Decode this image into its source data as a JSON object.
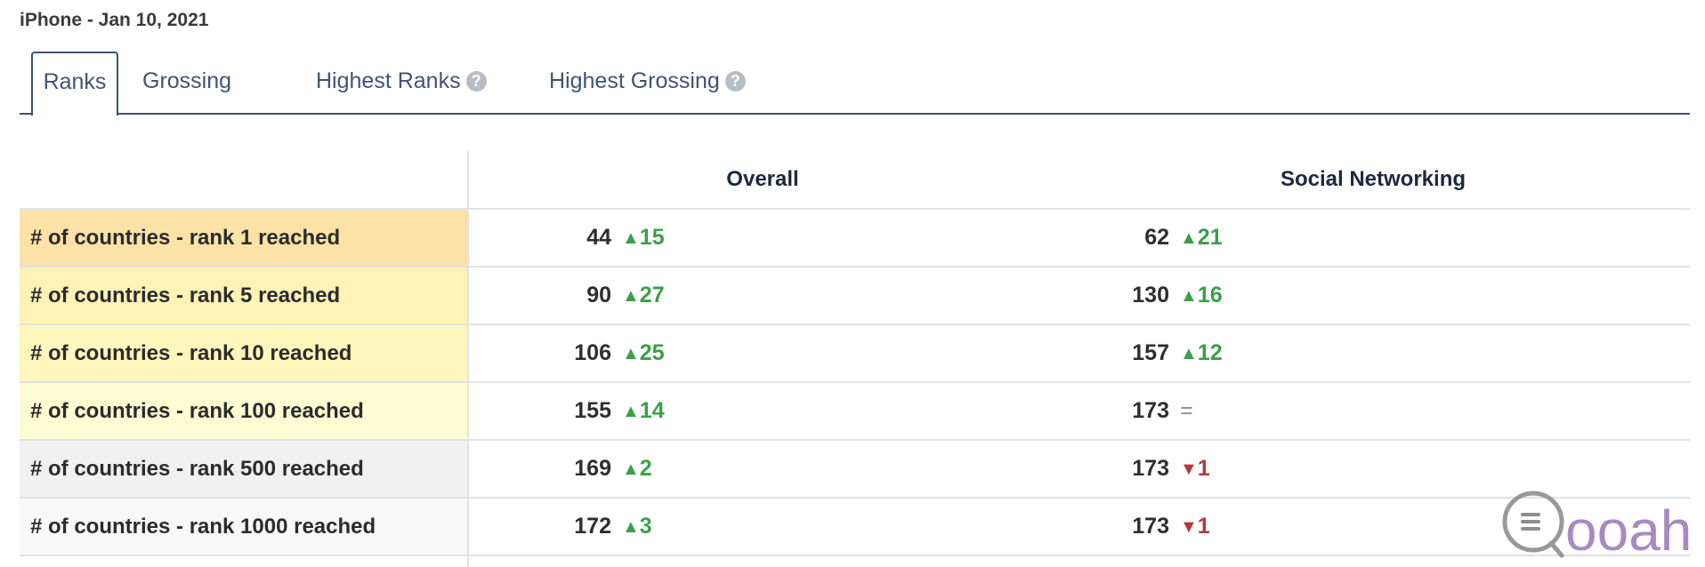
{
  "page_title": "iPhone - Jan 10, 2021",
  "tabs": [
    {
      "label": "Ranks",
      "active": true
    },
    {
      "label": "Grossing",
      "active": false
    },
    {
      "label": "Highest Ranks",
      "active": false,
      "help_icon": "question-circle-icon"
    },
    {
      "label": "Highest Grossing",
      "active": false,
      "help_icon": "question-circle-icon"
    }
  ],
  "help_glyph": "?",
  "table": {
    "columns": [
      "",
      "Overall",
      "Social Networking"
    ],
    "rows": [
      {
        "label": "# of countries - rank 1 reached",
        "bg": "#fde2a8",
        "overall": {
          "value": "44",
          "change": "15",
          "dir": "up"
        },
        "social": {
          "value": "62",
          "change": "21",
          "dir": "up"
        }
      },
      {
        "label": "# of countries - rank 5 reached",
        "bg": "#fef2b7",
        "overall": {
          "value": "90",
          "change": "27",
          "dir": "up"
        },
        "social": {
          "value": "130",
          "change": "16",
          "dir": "up"
        }
      },
      {
        "label": "# of countries - rank 10 reached",
        "bg": "#fef6bc",
        "overall": {
          "value": "106",
          "change": "25",
          "dir": "up"
        },
        "social": {
          "value": "157",
          "change": "12",
          "dir": "up"
        }
      },
      {
        "label": "# of countries - rank 100 reached",
        "bg": "#fdfcd2",
        "overall": {
          "value": "155",
          "change": "14",
          "dir": "up"
        },
        "social": {
          "value": "173",
          "change": "=",
          "dir": "same"
        }
      },
      {
        "label": "# of countries - rank 500 reached",
        "bg": "#f0f0f0",
        "overall": {
          "value": "169",
          "change": "2",
          "dir": "up"
        },
        "social": {
          "value": "173",
          "change": "1",
          "dir": "down"
        }
      },
      {
        "label": "# of countries - rank 1000 reached",
        "bg": "#f8f8f8",
        "overall": {
          "value": "172",
          "change": "3",
          "dir": "up"
        },
        "social": {
          "value": "173",
          "change": "1",
          "dir": "down"
        }
      }
    ]
  },
  "arrows": {
    "up": "▲",
    "down": "▼"
  },
  "colors": {
    "up": "#3aa047",
    "down": "#b13a3a",
    "tab_accent": "#3d5372"
  },
  "watermark": {
    "icon": "qooah-logo",
    "text": "ooah"
  }
}
